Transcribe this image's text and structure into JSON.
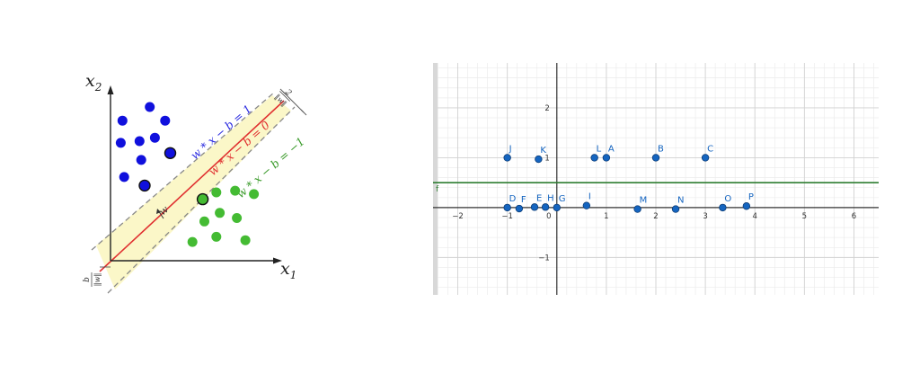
{
  "svm_diagram": {
    "axis_x_label": "x",
    "axis_x_sub": "1",
    "axis_y_label": "x",
    "axis_y_sub": "2",
    "line_positive": "w * x − b = 1",
    "line_center": "w * x − b = 0",
    "line_negative": "w * x − b = −1",
    "w_label": "w",
    "margin_num": "2",
    "margin_den": "‖w‖",
    "bias_num": "b",
    "bias_den": "‖w‖",
    "colors": {
      "positive": "#1010dd",
      "negative": "#44bb33",
      "center": "#e03030",
      "margin_band": "#fbf7c8",
      "positive_label": "#2a2ae0",
      "negative_label": "#3a9a2a"
    },
    "blue_points": [
      [
        0.7,
        8.2
      ],
      [
        2.3,
        9.0
      ],
      [
        3.2,
        8.2
      ],
      [
        0.6,
        6.9
      ],
      [
        1.7,
        7.0
      ],
      [
        2.6,
        7.2
      ],
      [
        1.8,
        5.9
      ],
      [
        0.8,
        4.9
      ],
      [
        2.0,
        4.4
      ],
      [
        3.5,
        6.3
      ]
    ],
    "green_points": [
      [
        6.2,
        4.0
      ],
      [
        7.3,
        4.1
      ],
      [
        8.4,
        3.9
      ],
      [
        5.5,
        2.3
      ],
      [
        6.4,
        2.8
      ],
      [
        7.4,
        2.5
      ],
      [
        4.8,
        1.1
      ],
      [
        6.2,
        1.4
      ],
      [
        7.9,
        1.2
      ],
      [
        5.4,
        3.6
      ]
    ]
  },
  "graph": {
    "line_label": "f",
    "line_color": "#2e7d32",
    "line_y": 0.5,
    "point_color": "#1565c0",
    "x_range": [
      -2.5,
      6.5
    ],
    "y_range": [
      -1.75,
      2.9
    ],
    "x_ticks": [
      "−2",
      "−1",
      "0",
      "1",
      "2",
      "3",
      "4",
      "5",
      "6"
    ],
    "x_tick_values": [
      -2,
      -1,
      0,
      1,
      2,
      3,
      4,
      5,
      6
    ],
    "y_ticks": [
      "2",
      "1",
      "−1"
    ],
    "y_tick_values": [
      2,
      1,
      -1
    ],
    "points": [
      {
        "label": "J",
        "x": -1,
        "y": 1
      },
      {
        "label": "K",
        "x": -0.37,
        "y": 0.97
      },
      {
        "label": "L",
        "x": 0.76,
        "y": 1
      },
      {
        "label": "A",
        "x": 1,
        "y": 1
      },
      {
        "label": "B",
        "x": 2,
        "y": 1
      },
      {
        "label": "C",
        "x": 3,
        "y": 1
      },
      {
        "label": "D",
        "x": -1,
        "y": 0
      },
      {
        "label": "F",
        "x": -0.76,
        "y": -0.02
      },
      {
        "label": "E",
        "x": -0.45,
        "y": 0.01
      },
      {
        "label": "H",
        "x": -0.23,
        "y": 0.01
      },
      {
        "label": "G",
        "x": 0,
        "y": 0
      },
      {
        "label": "I",
        "x": 0.6,
        "y": 0.04
      },
      {
        "label": "M",
        "x": 1.63,
        "y": -0.03
      },
      {
        "label": "N",
        "x": 2.4,
        "y": -0.03
      },
      {
        "label": "O",
        "x": 3.35,
        "y": 0
      },
      {
        "label": "P",
        "x": 3.83,
        "y": 0.03
      }
    ]
  }
}
